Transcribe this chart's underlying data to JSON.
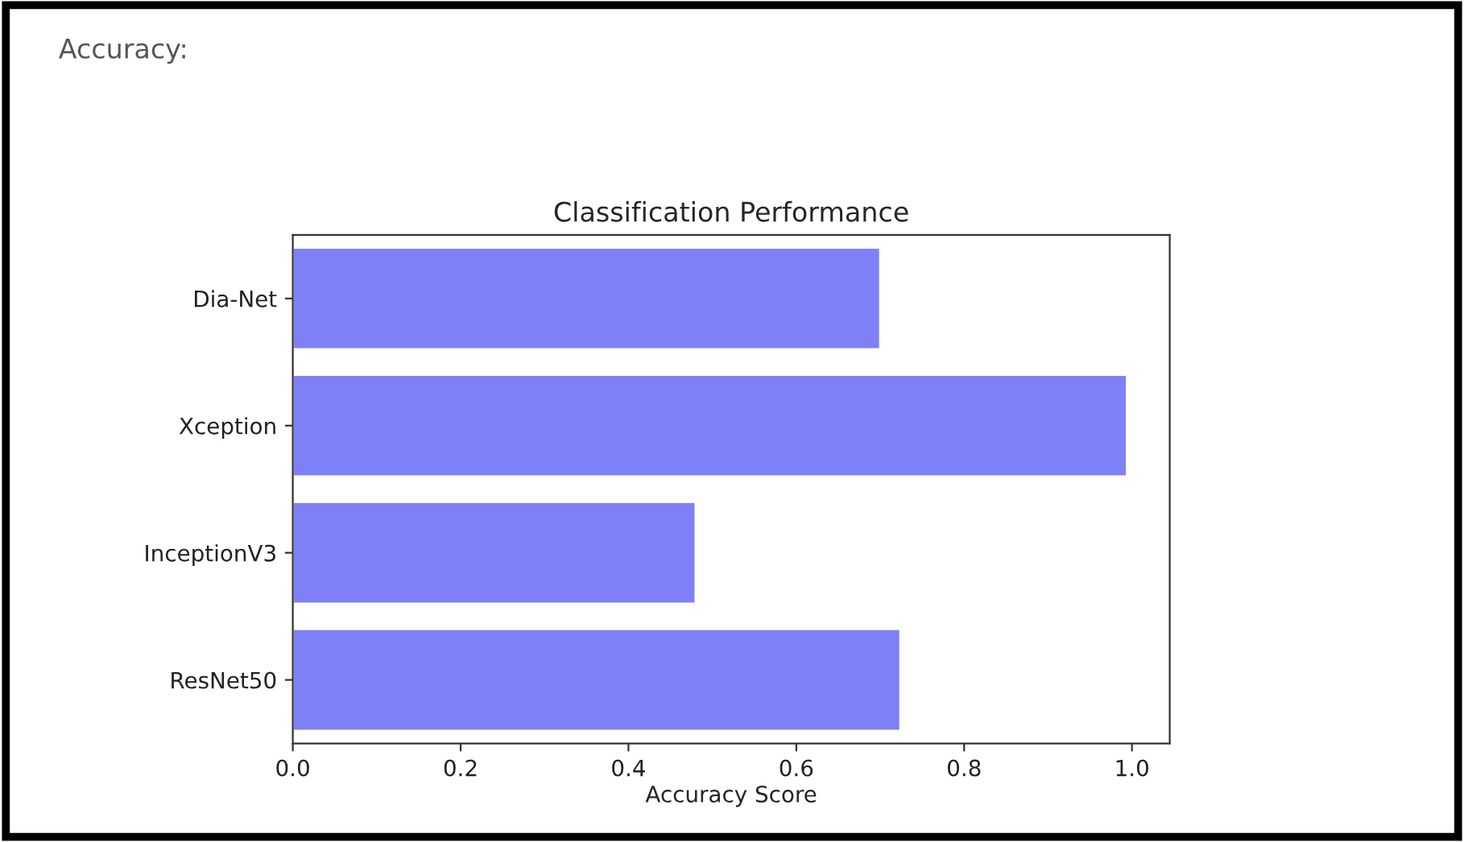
{
  "chart_data": {
    "type": "bar",
    "orientation": "horizontal",
    "title": "Classification Performance",
    "xlabel": "Accuracy Score",
    "annotations": [
      "Accuracy:"
    ],
    "categories": [
      "Dia-Net",
      "Xception",
      "InceptionV3",
      "ResNet50"
    ],
    "values": [
      0.7,
      0.994,
      0.48,
      0.724
    ],
    "color": "#7f7ff7",
    "xlim": [
      0,
      1.045
    ],
    "xticks": [
      {
        "value": 0,
        "label": "0.0"
      },
      0.2,
      0.4,
      0.6,
      0.8,
      {
        "value": 1,
        "label": "1.0"
      }
    ],
    "grid": false
  }
}
